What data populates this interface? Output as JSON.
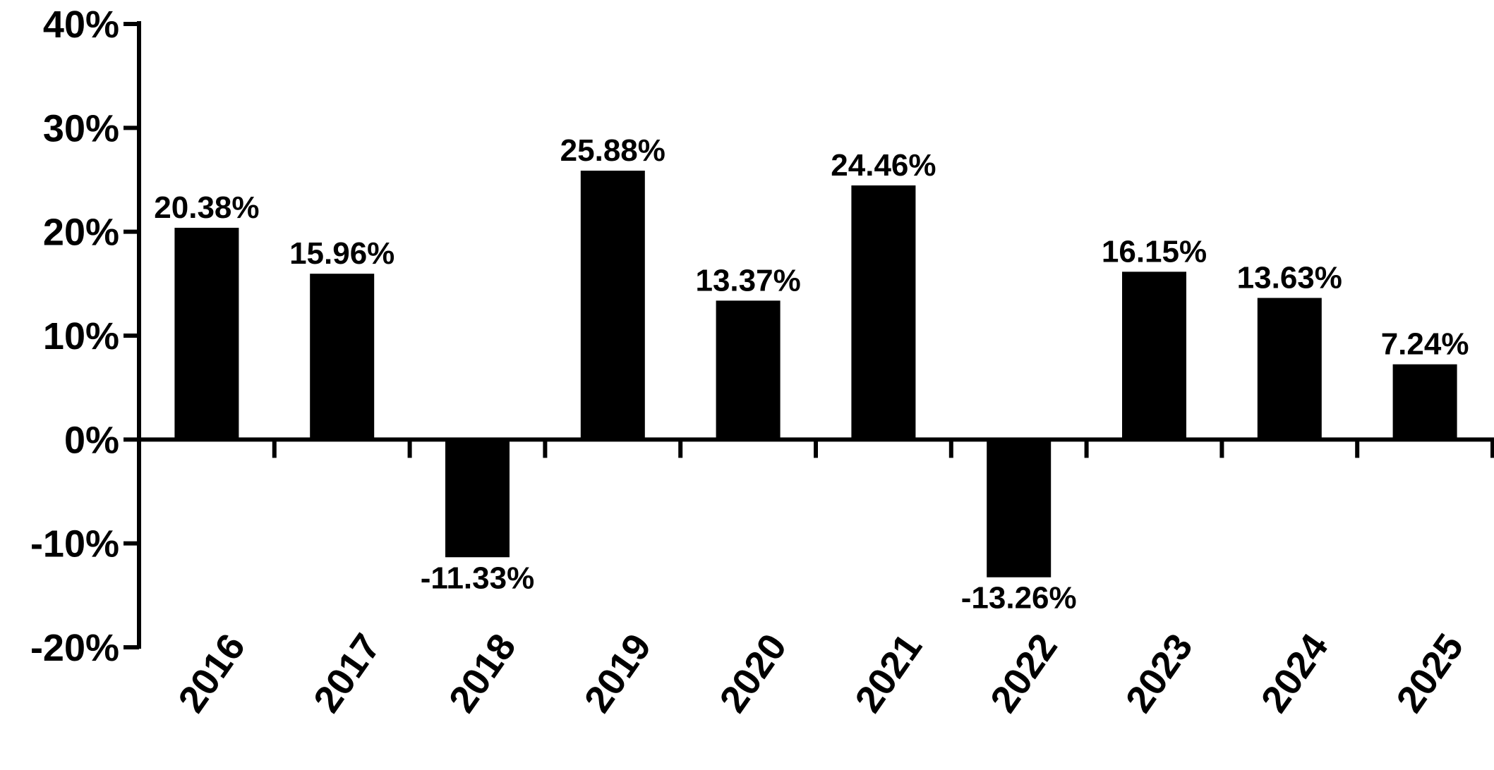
{
  "chart_data": {
    "type": "bar",
    "title": "",
    "xlabel": "",
    "ylabel": "",
    "categories": [
      "2016",
      "2017",
      "2018",
      "2019",
      "2020",
      "2021",
      "2022",
      "2023",
      "2024",
      "2025"
    ],
    "values": [
      20.38,
      15.96,
      -11.33,
      25.88,
      13.37,
      24.46,
      -13.26,
      16.15,
      13.63,
      7.24
    ],
    "data_labels": [
      "20.38%",
      "15.96%",
      "-11.33%",
      "25.88%",
      "13.37%",
      "24.46%",
      "-13.26%",
      "16.15%",
      "13.63%",
      "7.24%"
    ],
    "ylim": [
      -20,
      40
    ],
    "yticks": [
      40,
      30,
      20,
      10,
      0,
      -10,
      -20
    ],
    "ytick_labels": [
      "40%",
      "30%",
      "20%",
      "10%",
      "0%",
      "-10%",
      "-20%"
    ],
    "grid": false,
    "legend": "none",
    "bar_color": "#000000",
    "axis_color": "#000000"
  }
}
